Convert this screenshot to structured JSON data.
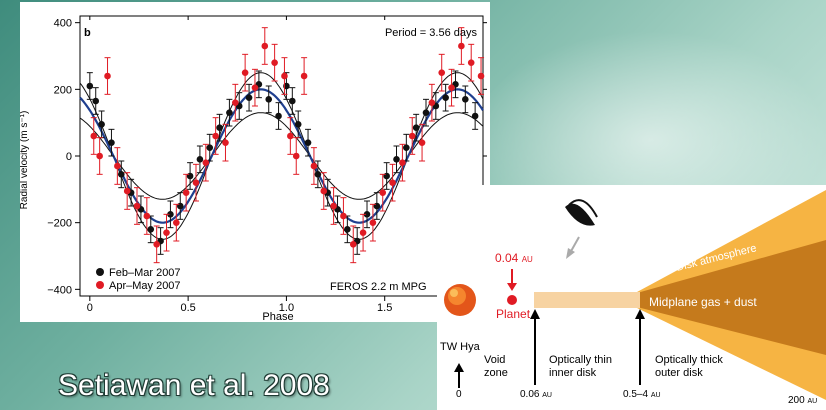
{
  "citation": "Setiawan et al. 2008",
  "chart_data": {
    "type": "scatter",
    "panel_label": "b",
    "annotation_period": "Period = 3.56 days",
    "instrument": "FEROS 2.2 m MPG",
    "xlabel": "Phase",
    "ylabel": "Radial velocity (m s⁻¹)",
    "xlim": [
      -0.05,
      2.0
    ],
    "ylim": [
      -420,
      420
    ],
    "xticks": [
      0,
      0.5,
      1.0,
      1.5
    ],
    "xtick_labels": [
      "0",
      "0.5",
      "1.0",
      "1.5"
    ],
    "yticks": [
      -400,
      -200,
      0,
      200,
      400
    ],
    "ytick_labels": [
      "−400",
      "−200",
      "0",
      "200",
      "400"
    ],
    "colors": {
      "feb_mar": "#111111",
      "apr_may": "#e01b24",
      "fit": "#1f3f8f",
      "envelope": "#111111"
    },
    "fit": {
      "amplitude": 200,
      "phase_of_max": 0.87,
      "envelope_amplitudes": [
        130,
        250
      ]
    },
    "series": [
      {
        "name": "Feb–Mar 2007",
        "color": "#111111",
        "x": [
          0.0,
          0.03,
          0.06,
          0.11,
          0.16,
          0.21,
          0.26,
          0.31,
          0.36,
          0.41,
          0.46,
          0.51,
          0.56,
          0.61,
          0.66,
          0.71,
          0.76,
          0.81,
          0.86,
          0.91,
          0.96,
          1.0,
          1.03,
          1.06,
          1.11,
          1.16,
          1.21,
          1.26,
          1.31,
          1.36,
          1.41,
          1.46,
          1.51,
          1.56,
          1.61,
          1.66,
          1.71,
          1.76,
          1.81,
          1.86,
          1.91,
          1.96
        ],
        "y": [
          210,
          165,
          95,
          40,
          -55,
          -110,
          -160,
          -220,
          -255,
          -175,
          -150,
          -60,
          -10,
          25,
          85,
          130,
          150,
          175,
          215,
          170,
          120,
          210,
          165,
          95,
          40,
          -55,
          -110,
          -160,
          -220,
          -255,
          -175,
          -150,
          -60,
          -10,
          25,
          85,
          130,
          150,
          175,
          215,
          170,
          120
        ],
        "yerr": 40
      },
      {
        "name": "Apr–May 2007",
        "color": "#e01b24",
        "x": [
          0.02,
          0.05,
          0.09,
          0.14,
          0.19,
          0.24,
          0.29,
          0.34,
          0.39,
          0.44,
          0.49,
          0.54,
          0.59,
          0.64,
          0.69,
          0.74,
          0.79,
          0.84,
          0.89,
          0.94,
          0.99,
          1.02,
          1.05,
          1.09,
          1.14,
          1.19,
          1.24,
          1.29,
          1.34,
          1.39,
          1.44,
          1.49,
          1.54,
          1.59,
          1.64,
          1.69,
          1.74,
          1.79,
          1.84,
          1.89,
          1.94,
          1.99
        ],
        "y": [
          60,
          0,
          240,
          -30,
          -105,
          -150,
          -180,
          -265,
          -230,
          -200,
          -110,
          -80,
          -20,
          60,
          40,
          160,
          250,
          205,
          330,
          280,
          240,
          60,
          0,
          240,
          -30,
          -105,
          -150,
          -180,
          -265,
          -230,
          -200,
          -110,
          -80,
          -20,
          60,
          40,
          160,
          250,
          205,
          330,
          280,
          240
        ],
        "yerr": 55
      }
    ]
  },
  "disk_diagram": {
    "planet_distance": "0.04",
    "planet_distance_unit": "AU",
    "planet_label": "Planet",
    "star_label": "TW Hya",
    "void_zone_label_1": "Void",
    "void_zone_label_2": "zone",
    "thin_disk_label_1": "Optically thin",
    "thin_disk_label_2": "inner disk",
    "thick_disk_label_1": "Optically thick",
    "thick_disk_label_2": "outer disk",
    "atmosphere_label": "Disk atmosphere",
    "midplane_label": "Midplane gas + dust",
    "tick_0": "0",
    "tick_inner": "0.06",
    "tick_outer": "0.5–4",
    "tick_edge": "200",
    "unit": "AU"
  }
}
